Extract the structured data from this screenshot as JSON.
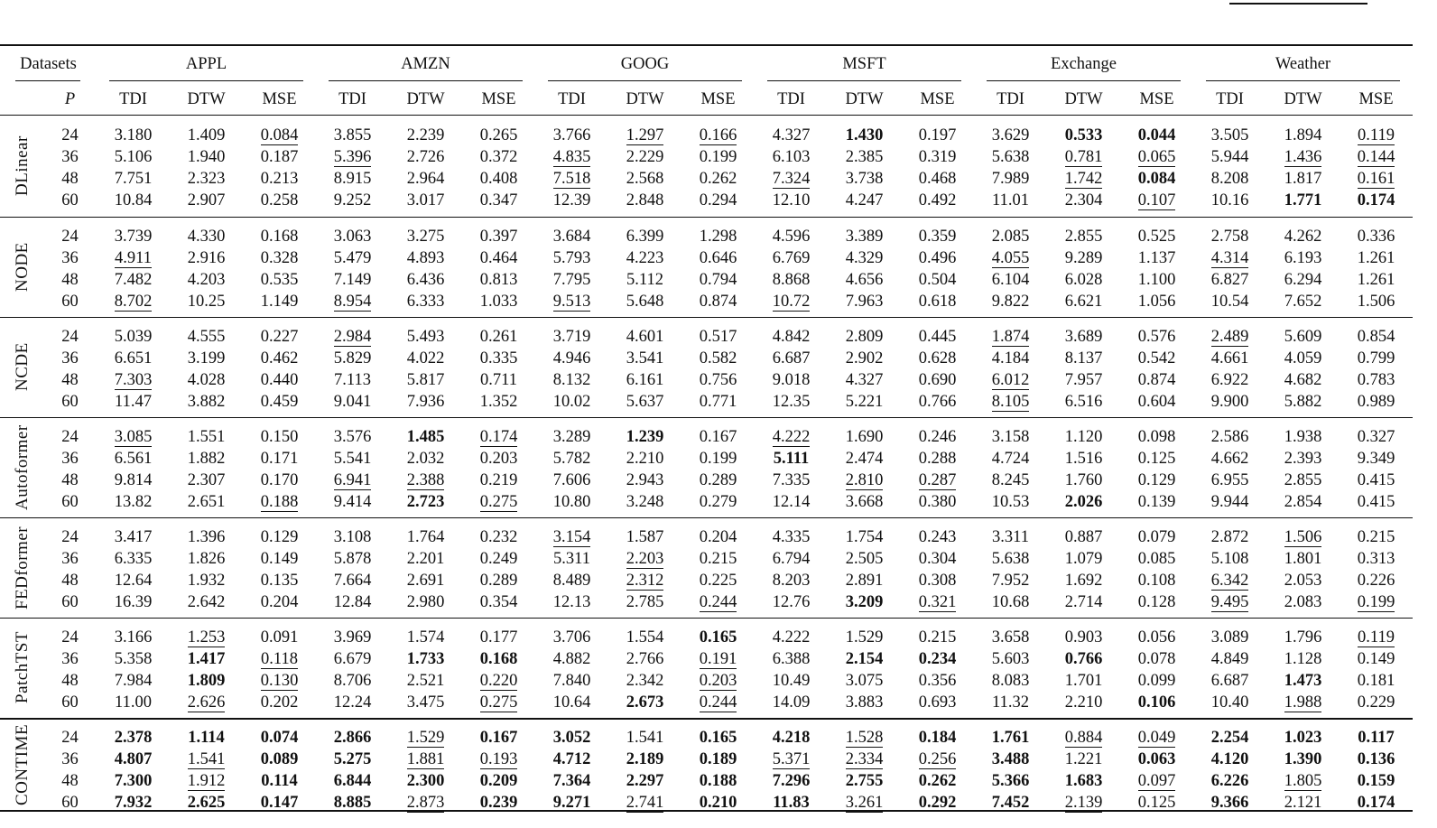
{
  "table": {
    "corner_label": "Datasets",
    "p_label": "P",
    "datasets": [
      "APPL",
      "AMZN",
      "GOOG",
      "MSFT",
      "Exchange",
      "Weather"
    ],
    "metrics": [
      "TDI",
      "DTW",
      "MSE"
    ],
    "style_legend": {
      "b": "bold (best)",
      "u": "underlined (second best)"
    },
    "groups": [
      {
        "model": "DLinear",
        "rows": [
          {
            "p": "24",
            "v": [
              "3.180",
              "1.409",
              "0.084",
              "3.855",
              "2.239",
              "0.265",
              "3.766",
              "1.297",
              "0.166",
              "4.327",
              "1.430",
              "0.197",
              "3.629",
              "0.533",
              "0.044",
              "3.505",
              "1.894",
              "0.119"
            ],
            "s": "..u ... .uu .b. .bb ..u"
          },
          {
            "p": "36",
            "v": [
              "5.106",
              "1.940",
              "0.187",
              "5.396",
              "2.726",
              "0.372",
              "4.835",
              "2.229",
              "0.199",
              "6.103",
              "2.385",
              "0.319",
              "5.638",
              "0.781",
              "0.065",
              "5.944",
              "1.436",
              "0.144"
            ],
            "s": "... u.. u.. ... .uu .uu"
          },
          {
            "p": "48",
            "v": [
              "7.751",
              "2.323",
              "0.213",
              "8.915",
              "2.964",
              "0.408",
              "7.518",
              "2.568",
              "0.262",
              "7.324",
              "3.738",
              "0.468",
              "7.989",
              "1.742",
              "0.084",
              "8.208",
              "1.817",
              "0.161"
            ],
            "s": "... ... u.. u.. .ub ..u"
          },
          {
            "p": "60",
            "v": [
              "10.84",
              "2.907",
              "0.258",
              "9.252",
              "3.017",
              "0.347",
              "12.39",
              "2.848",
              "0.294",
              "12.10",
              "4.247",
              "0.492",
              "11.01",
              "2.304",
              "0.107",
              "10.16",
              "1.771",
              "0.174"
            ],
            "s": "... ... ... ... ..u .bb"
          }
        ]
      },
      {
        "model": "NODE",
        "rows": [
          {
            "p": "24",
            "v": [
              "3.739",
              "4.330",
              "0.168",
              "3.063",
              "3.275",
              "0.397",
              "3.684",
              "6.399",
              "1.298",
              "4.596",
              "3.389",
              "0.359",
              "2.085",
              "2.855",
              "0.525",
              "2.758",
              "4.262",
              "0.336"
            ],
            "s": "... ... ... ... ... ..."
          },
          {
            "p": "36",
            "v": [
              "4.911",
              "2.916",
              "0.328",
              "5.479",
              "4.893",
              "0.464",
              "5.793",
              "4.223",
              "0.646",
              "6.769",
              "4.329",
              "0.496",
              "4.055",
              "9.289",
              "1.137",
              "4.314",
              "6.193",
              "1.261"
            ],
            "s": "u.. ... ... ... u.. u.."
          },
          {
            "p": "48",
            "v": [
              "7.482",
              "4.203",
              "0.535",
              "7.149",
              "6.436",
              "0.813",
              "7.795",
              "5.112",
              "0.794",
              "8.868",
              "4.656",
              "0.504",
              "6.104",
              "6.028",
              "1.100",
              "6.827",
              "6.294",
              "1.261"
            ],
            "s": "... ... ... ... ... ..."
          },
          {
            "p": "60",
            "v": [
              "8.702",
              "10.25",
              "1.149",
              "8.954",
              "6.333",
              "1.033",
              "9.513",
              "5.648",
              "0.874",
              "10.72",
              "7.963",
              "0.618",
              "9.822",
              "6.621",
              "1.056",
              "10.54",
              "7.652",
              "1.506"
            ],
            "s": "u.. u.. u.. u.. ... ..."
          }
        ]
      },
      {
        "model": "NCDE",
        "rows": [
          {
            "p": "24",
            "v": [
              "5.039",
              "4.555",
              "0.227",
              "2.984",
              "5.493",
              "0.261",
              "3.719",
              "4.601",
              "0.517",
              "4.842",
              "2.809",
              "0.445",
              "1.874",
              "3.689",
              "0.576",
              "2.489",
              "5.609",
              "0.854"
            ],
            "s": "... u.. ... ... u.. u.."
          },
          {
            "p": "36",
            "v": [
              "6.651",
              "3.199",
              "0.462",
              "5.829",
              "4.022",
              "0.335",
              "4.946",
              "3.541",
              "0.582",
              "6.687",
              "2.902",
              "0.628",
              "4.184",
              "8.137",
              "0.542",
              "4.661",
              "4.059",
              "0.799"
            ],
            "s": "... ... ... ... ... ..."
          },
          {
            "p": "48",
            "v": [
              "7.303",
              "4.028",
              "0.440",
              "7.113",
              "5.817",
              "0.711",
              "8.132",
              "6.161",
              "0.756",
              "9.018",
              "4.327",
              "0.690",
              "6.012",
              "7.957",
              "0.874",
              "6.922",
              "4.682",
              "0.783"
            ],
            "s": "u.. ... ... ... u.. ..."
          },
          {
            "p": "60",
            "v": [
              "11.47",
              "3.882",
              "0.459",
              "9.041",
              "7.936",
              "1.352",
              "10.02",
              "5.637",
              "0.771",
              "12.35",
              "5.221",
              "0.766",
              "8.105",
              "6.516",
              "0.604",
              "9.900",
              "5.882",
              "0.989"
            ],
            "s": "... ... ... ... u.. ..."
          }
        ]
      },
      {
        "model": "Autoformer",
        "rows": [
          {
            "p": "24",
            "v": [
              "3.085",
              "1.551",
              "0.150",
              "3.576",
              "1.485",
              "0.174",
              "3.289",
              "1.239",
              "0.167",
              "4.222",
              "1.690",
              "0.246",
              "3.158",
              "1.120",
              "0.098",
              "2.586",
              "1.938",
              "0.327"
            ],
            "s": "u.. .bu .b. u.. ... ..."
          },
          {
            "p": "36",
            "v": [
              "6.561",
              "1.882",
              "0.171",
              "5.541",
              "2.032",
              "0.203",
              "5.782",
              "2.210",
              "0.199",
              "5.111",
              "2.474",
              "0.288",
              "4.724",
              "1.516",
              "0.125",
              "4.662",
              "2.393",
              "9.349"
            ],
            "s": "... ... ... b.. ... ..."
          },
          {
            "p": "48",
            "v": [
              "9.814",
              "2.307",
              "0.170",
              "6.941",
              "2.388",
              "0.219",
              "7.606",
              "2.943",
              "0.289",
              "7.335",
              "2.810",
              "0.287",
              "8.245",
              "1.760",
              "0.129",
              "6.955",
              "2.855",
              "0.415"
            ],
            "s": "... uu. ... .uu ... ..."
          },
          {
            "p": "60",
            "v": [
              "13.82",
              "2.651",
              "0.188",
              "9.414",
              "2.723",
              "0.275",
              "10.80",
              "3.248",
              "0.279",
              "12.14",
              "3.668",
              "0.380",
              "10.53",
              "2.026",
              "0.139",
              "9.944",
              "2.854",
              "0.415"
            ],
            "s": "..u .bu ... ... .b. ..."
          }
        ]
      },
      {
        "model": "FEDformer",
        "rows": [
          {
            "p": "24",
            "v": [
              "3.417",
              "1.396",
              "0.129",
              "3.108",
              "1.764",
              "0.232",
              "3.154",
              "1.587",
              "0.204",
              "4.335",
              "1.754",
              "0.243",
              "3.311",
              "0.887",
              "0.079",
              "2.872",
              "1.506",
              "0.215"
            ],
            "s": "... ... u.. ... ... .u."
          },
          {
            "p": "36",
            "v": [
              "6.335",
              "1.826",
              "0.149",
              "5.878",
              "2.201",
              "0.249",
              "5.311",
              "2.203",
              "0.215",
              "6.794",
              "2.505",
              "0.304",
              "5.638",
              "1.079",
              "0.085",
              "5.108",
              "1.801",
              "0.313"
            ],
            "s": "... ... .u. ... ... ..."
          },
          {
            "p": "48",
            "v": [
              "12.64",
              "1.932",
              "0.135",
              "7.664",
              "2.691",
              "0.289",
              "8.489",
              "2.312",
              "0.225",
              "8.203",
              "2.891",
              "0.308",
              "7.952",
              "1.692",
              "0.108",
              "6.342",
              "2.053",
              "0.226"
            ],
            "s": "... ... .u. ... ... u.."
          },
          {
            "p": "60",
            "v": [
              "16.39",
              "2.642",
              "0.204",
              "12.84",
              "2.980",
              "0.354",
              "12.13",
              "2.785",
              "0.244",
              "12.76",
              "3.209",
              "0.321",
              "10.68",
              "2.714",
              "0.128",
              "9.495",
              "2.083",
              "0.199"
            ],
            "s": "... ... ..u .bu ... u.u"
          }
        ]
      },
      {
        "model": "PatchTST",
        "rows": [
          {
            "p": "24",
            "v": [
              "3.166",
              "1.253",
              "0.091",
              "3.969",
              "1.574",
              "0.177",
              "3.706",
              "1.554",
              "0.165",
              "4.222",
              "1.529",
              "0.215",
              "3.658",
              "0.903",
              "0.056",
              "3.089",
              "1.796",
              "0.119"
            ],
            "s": ".u. ... ..b ... ... ..u"
          },
          {
            "p": "36",
            "v": [
              "5.358",
              "1.417",
              "0.118",
              "6.679",
              "1.733",
              "0.168",
              "4.882",
              "2.766",
              "0.191",
              "6.388",
              "2.154",
              "0.234",
              "5.603",
              "0.766",
              "0.078",
              "4.849",
              "1.128",
              "0.149"
            ],
            "s": ".bu .bb ..u .bb .b. ..."
          },
          {
            "p": "48",
            "v": [
              "7.984",
              "1.809",
              "0.130",
              "8.706",
              "2.521",
              "0.220",
              "7.840",
              "2.342",
              "0.203",
              "10.49",
              "3.075",
              "0.356",
              "8.083",
              "1.701",
              "0.099",
              "6.687",
              "1.473",
              "0.181"
            ],
            "s": ".bu ..u ..u ... ... .b."
          },
          {
            "p": "60",
            "v": [
              "11.00",
              "2.626",
              "0.202",
              "12.24",
              "3.475",
              "0.275",
              "10.64",
              "2.673",
              "0.244",
              "14.09",
              "3.883",
              "0.693",
              "11.32",
              "2.210",
              "0.106",
              "10.40",
              "1.988",
              "0.229"
            ],
            "s": ".u. ..u .bu ... ..b .u."
          }
        ]
      },
      {
        "model": "CONTIME",
        "rows": [
          {
            "p": "24",
            "v": [
              "2.378",
              "1.114",
              "0.074",
              "2.866",
              "1.529",
              "0.167",
              "3.052",
              "1.541",
              "0.165",
              "4.218",
              "1.528",
              "0.184",
              "1.761",
              "0.884",
              "0.049",
              "2.254",
              "1.023",
              "0.117"
            ],
            "s": "bbb bub b.b bub buu bbb"
          },
          {
            "p": "36",
            "v": [
              "4.807",
              "1.541",
              "0.089",
              "5.275",
              "1.881",
              "0.193",
              "4.712",
              "2.189",
              "0.189",
              "5.371",
              "2.334",
              "0.256",
              "3.488",
              "1.221",
              "0.063",
              "4.120",
              "1.390",
              "0.136"
            ],
            "s": "bub buu bbb uuu b.b bbb"
          },
          {
            "p": "48",
            "v": [
              "7.300",
              "1.912",
              "0.114",
              "6.844",
              "2.300",
              "0.209",
              "7.364",
              "2.297",
              "0.188",
              "7.296",
              "2.755",
              "0.262",
              "5.366",
              "1.683",
              "0.097",
              "6.226",
              "1.805",
              "0.159"
            ],
            "s": "bub bbb bbb bbb bbu bub"
          },
          {
            "p": "60",
            "v": [
              "7.932",
              "2.625",
              "0.147",
              "8.885",
              "2.873",
              "0.239",
              "9.271",
              "2.741",
              "0.210",
              "11.83",
              "3.261",
              "0.292",
              "7.452",
              "2.139",
              "0.125",
              "9.366",
              "2.121",
              "0.174"
            ],
            "s": "bbb bub bub bub bu. b.b"
          }
        ]
      }
    ]
  }
}
